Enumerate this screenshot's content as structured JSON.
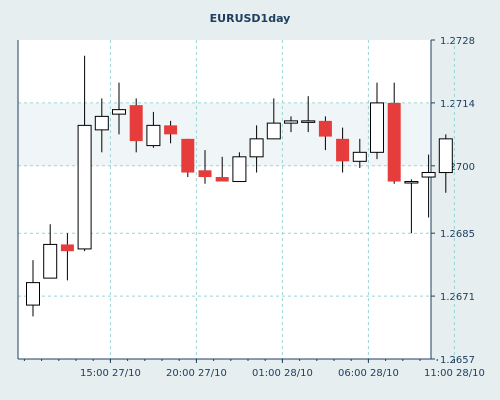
{
  "chart_data": {
    "type": "candlestick",
    "title": "EURUSD1day",
    "y_axis_position": "right",
    "grid": true,
    "grid_style": "dashed",
    "ylim": [
      1.2657,
      1.2728
    ],
    "y_ticks": [
      "1.2657",
      "1.2671",
      "1.2685",
      "1.2700",
      "1.2714",
      "1.2728"
    ],
    "x_ticks": [
      {
        "label": "15:00 27/10",
        "candle_index": 5
      },
      {
        "label": "20:00 27/10",
        "candle_index": 10
      },
      {
        "label": "01:00 28/10",
        "candle_index": 15
      },
      {
        "label": "06:00 28/10",
        "candle_index": 20
      },
      {
        "label": "11:00 28/10",
        "candle_index": 25
      }
    ],
    "colors": {
      "up_fill": "#ffffff",
      "down_fill": "#e63c3c",
      "outline": "#000000",
      "grid": "#9fd3d3",
      "axis_text": "#1e3f60",
      "panel_background": "#ffffff",
      "band_background": "#f0f5f7",
      "outer_background": "#e7eef0"
    },
    "candles": [
      {
        "open": 1.2669,
        "high": 1.2679,
        "low": 1.26665,
        "close": 1.2674
      },
      {
        "open": 1.2675,
        "high": 1.2687,
        "low": 1.2675,
        "close": 1.26825
      },
      {
        "open": 1.26825,
        "high": 1.2685,
        "low": 1.26745,
        "close": 1.2681
      },
      {
        "open": 1.26815,
        "high": 1.27245,
        "low": 1.2681,
        "close": 1.2709
      },
      {
        "open": 1.2708,
        "high": 1.2715,
        "low": 1.2703,
        "close": 1.2711
      },
      {
        "open": 1.27115,
        "high": 1.27185,
        "low": 1.2707,
        "close": 1.27125
      },
      {
        "open": 1.27135,
        "high": 1.2715,
        "low": 1.2703,
        "close": 1.27055
      },
      {
        "open": 1.27045,
        "high": 1.2712,
        "low": 1.2704,
        "close": 1.2709
      },
      {
        "open": 1.2709,
        "high": 1.271,
        "low": 1.2705,
        "close": 1.2707
      },
      {
        "open": 1.2706,
        "high": 1.2706,
        "low": 1.26975,
        "close": 1.26985
      },
      {
        "open": 1.2699,
        "high": 1.27035,
        "low": 1.2696,
        "close": 1.26975
      },
      {
        "open": 1.26975,
        "high": 1.2702,
        "low": 1.26965,
        "close": 1.26965
      },
      {
        "open": 1.26965,
        "high": 1.2703,
        "low": 1.26965,
        "close": 1.2702
      },
      {
        "open": 1.2702,
        "high": 1.2709,
        "low": 1.26985,
        "close": 1.2706
      },
      {
        "open": 1.2706,
        "high": 1.2715,
        "low": 1.2706,
        "close": 1.27095
      },
      {
        "open": 1.27095,
        "high": 1.2711,
        "low": 1.27075,
        "close": 1.271
      },
      {
        "open": 1.271,
        "high": 1.27155,
        "low": 1.27075,
        "close": 1.271
      },
      {
        "open": 1.271,
        "high": 1.2711,
        "low": 1.27035,
        "close": 1.27065
      },
      {
        "open": 1.2706,
        "high": 1.27085,
        "low": 1.26985,
        "close": 1.2701
      },
      {
        "open": 1.2701,
        "high": 1.2706,
        "low": 1.26995,
        "close": 1.2703
      },
      {
        "open": 1.2703,
        "high": 1.27185,
        "low": 1.27015,
        "close": 1.2714
      },
      {
        "open": 1.2714,
        "high": 1.27185,
        "low": 1.2696,
        "close": 1.26965
      },
      {
        "open": 1.26965,
        "high": 1.2697,
        "low": 1.2685,
        "close": 1.26965
      },
      {
        "open": 1.26975,
        "high": 1.27025,
        "low": 1.26885,
        "close": 1.26985
      },
      {
        "open": 1.26985,
        "high": 1.2707,
        "low": 1.2694,
        "close": 1.2706
      }
    ]
  }
}
